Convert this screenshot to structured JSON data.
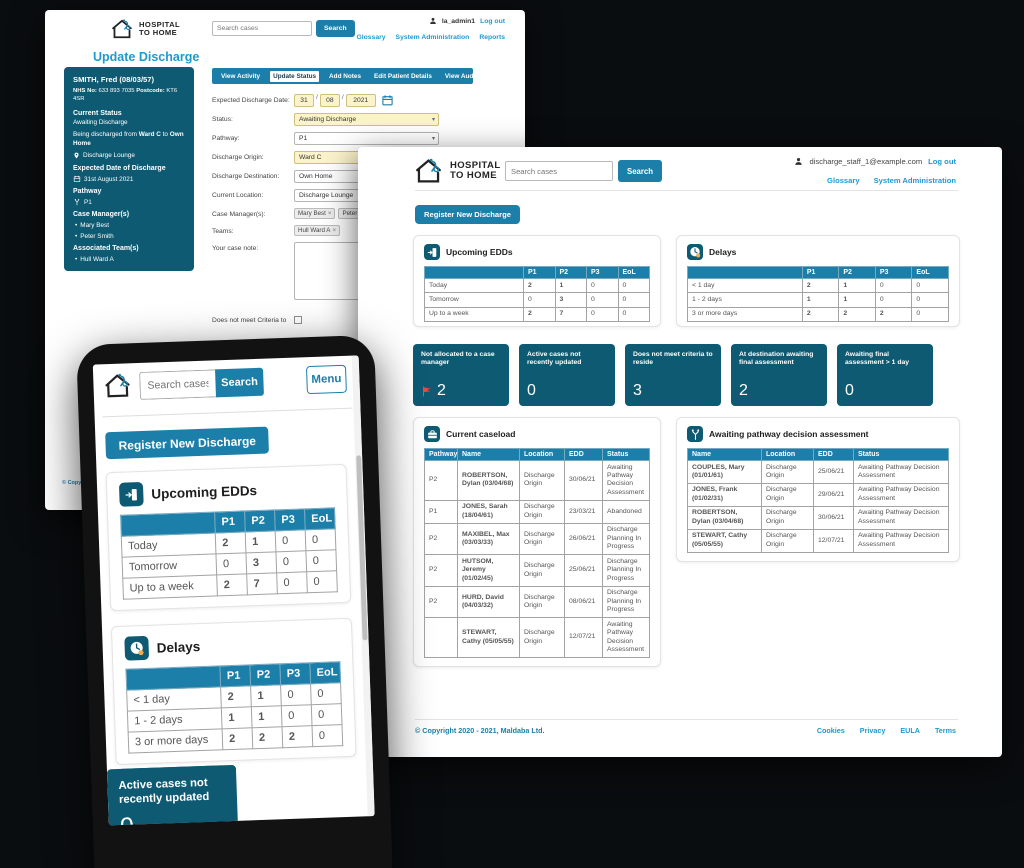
{
  "brand": {
    "line1": "HOSPITAL",
    "line2": "TO HOME"
  },
  "icons": {
    "chevron_down": "▾",
    "close": "×",
    "bullet": "•"
  },
  "colors": {
    "teal": "#1b7fa9",
    "dark_teal": "#0e5a72",
    "link_blue": "#1d9ad2",
    "flag_red": "#e84e35",
    "field_yellow": "#fbf4cb"
  },
  "update_screen": {
    "search_placeholder": "Search cases",
    "search_button": "Search",
    "user": "la_admin1",
    "logout": "Log out",
    "nav": [
      "Glossary",
      "System Administration",
      "Reports"
    ],
    "title": "Update Discharge",
    "patient": {
      "name": "SMITH, Fred (08/03/57)",
      "nhs_label": "NHS No:",
      "nhs_value": "633 893 7035",
      "postcode_label": "Postcode:",
      "postcode_value": "KT6 4SR",
      "current_status_label": "Current Status",
      "current_status": "Awaiting Discharge",
      "discharge_pre": "Being discharged from",
      "discharge_ward": "Ward C",
      "discharge_mid": "to",
      "discharge_dest": "Own Home",
      "location": "Discharge Lounge",
      "edd_label": "Expected Date of Discharge",
      "edd_value": "31st August 2021",
      "pathway_label": "Pathway",
      "pathway_value": "P1",
      "case_managers_label": "Case Manager(s)",
      "case_managers": [
        "Mary Best",
        "Peter Smith"
      ],
      "teams_label": "Associated Team(s)",
      "teams": [
        "Hull Ward A"
      ]
    },
    "tabs": [
      "View Activity",
      "Update Status",
      "Add Notes",
      "Edit Patient Details",
      "View Audit Log"
    ],
    "active_tab": "Update Status",
    "form": {
      "date_label": "Expected Discharge Date:",
      "date_day": "31",
      "date_month": "08",
      "date_year": "2021",
      "date_separator": "/",
      "status_label": "Status:",
      "status_value": "Awaiting Discharge",
      "pathway_label": "Pathway:",
      "pathway_value": "P1",
      "origin_label": "Discharge Origin:",
      "origin_value": "Ward C",
      "destination_label": "Discharge Destination:",
      "destination_value": "Own Home",
      "location_label": "Current Location:",
      "location_value": "Discharge Lounge",
      "case_managers_label": "Case Manager(s):",
      "case_manager_tags": [
        "Mary Best",
        "Peter S"
      ],
      "teams_label": "Teams:",
      "team_tags": [
        "Hull Ward A"
      ],
      "note_label": "Your case note:",
      "criteria_label": "Does not meet Criteria to"
    },
    "copyright": "© Copyright 2020 - 2021, Maldaba Ltd."
  },
  "dashboard_screen": {
    "search_placeholder": "Search cases",
    "search_button": "Search",
    "user": "discharge_staff_1@example.com",
    "logout": "Log out",
    "nav": [
      "Glossary",
      "System Administration"
    ],
    "register_button": "Register New Discharge",
    "footer": {
      "copyright": "© Copyright 2020 - 2021, Maldaba Ltd.",
      "links": [
        "Cookies",
        "Privacy",
        "EULA",
        "Terms"
      ]
    }
  },
  "mobile_screen": {
    "search_placeholder": "Search cases",
    "search_button": "Search",
    "menu_button": "Menu",
    "register_button": "Register New Discharge"
  },
  "dashboard": {
    "upcoming_edds": {
      "title": "Upcoming EDDs",
      "columns": [
        "",
        "P1",
        "P2",
        "P3",
        "EoL"
      ],
      "rows": [
        {
          "label": "Today",
          "values": [
            "2",
            "1",
            "0",
            "0"
          ]
        },
        {
          "label": "Tomorrow",
          "values": [
            "0",
            "3",
            "0",
            "0"
          ]
        },
        {
          "label": "Up to a week",
          "values": [
            "2",
            "7",
            "0",
            "0"
          ]
        }
      ]
    },
    "delays": {
      "title": "Delays",
      "columns": [
        "",
        "P1",
        "P2",
        "P3",
        "EoL"
      ],
      "rows": [
        {
          "label": "< 1 day",
          "values": [
            "2",
            "1",
            "0",
            "0"
          ]
        },
        {
          "label": "1 - 2 days",
          "values": [
            "1",
            "1",
            "0",
            "0"
          ]
        },
        {
          "label": "3 or more days",
          "values": [
            "2",
            "2",
            "2",
            "0"
          ]
        }
      ]
    },
    "stat_cards": [
      {
        "label": "Not allocated to a case manager",
        "value": "2",
        "flag": true
      },
      {
        "label": "Active cases not recently updated",
        "value": "0",
        "flag": false
      },
      {
        "label": "Does not meet criteria to reside",
        "value": "3",
        "flag": false
      },
      {
        "label": "At destination awaiting final assessment",
        "value": "2",
        "flag": false
      },
      {
        "label": "Awaiting final assessment > 1 day",
        "value": "0",
        "flag": false
      }
    ],
    "caseload": {
      "title": "Current caseload",
      "columns": [
        "Pathway",
        "Name",
        "Location",
        "EDD",
        "Status"
      ],
      "link_col": 1,
      "rows": [
        [
          "P2",
          "ROBERTSON, Dylan (03/04/68)",
          "Discharge Origin",
          "30/06/21",
          "Awaiting Pathway Decision Assessment"
        ],
        [
          "P1",
          "JONES, Sarah (18/04/61)",
          "Discharge Origin",
          "23/03/21",
          "Abandoned"
        ],
        [
          "P2",
          "MAXIBEL, Max (03/03/33)",
          "Discharge Origin",
          "26/06/21",
          "Discharge Planning In Progress"
        ],
        [
          "P2",
          "HUTSOM, Jeremy (01/02/45)",
          "Discharge Origin",
          "25/06/21",
          "Discharge Planning In Progress"
        ],
        [
          "P2",
          "HURD, David (04/03/32)",
          "Discharge Origin",
          "08/06/21",
          "Discharge Planning In Progress"
        ],
        [
          "",
          "STEWART, Cathy (05/05/55)",
          "Discharge Origin",
          "12/07/21",
          "Awaiting Pathway Decision Assessment"
        ]
      ]
    },
    "awaiting_pathway": {
      "title": "Awaiting pathway decision assessment",
      "columns": [
        "Name",
        "Location",
        "EDD",
        "Status"
      ],
      "link_col": 0,
      "rows": [
        [
          "COUPLES, Mary (01/01/61)",
          "Discharge Origin",
          "25/06/21",
          "Awaiting Pathway Decision Assessment"
        ],
        [
          "JONES, Frank (01/02/31)",
          "Discharge Origin",
          "29/06/21",
          "Awaiting Pathway Decision Assessment"
        ],
        [
          "ROBERTSON, Dylan (03/04/68)",
          "Discharge Origin",
          "30/06/21",
          "Awaiting Pathway Decision Assessment"
        ],
        [
          "STEWART, Cathy (05/05/55)",
          "Discharge Origin",
          "12/07/21",
          "Awaiting Pathway Decision Assessment"
        ]
      ]
    }
  }
}
